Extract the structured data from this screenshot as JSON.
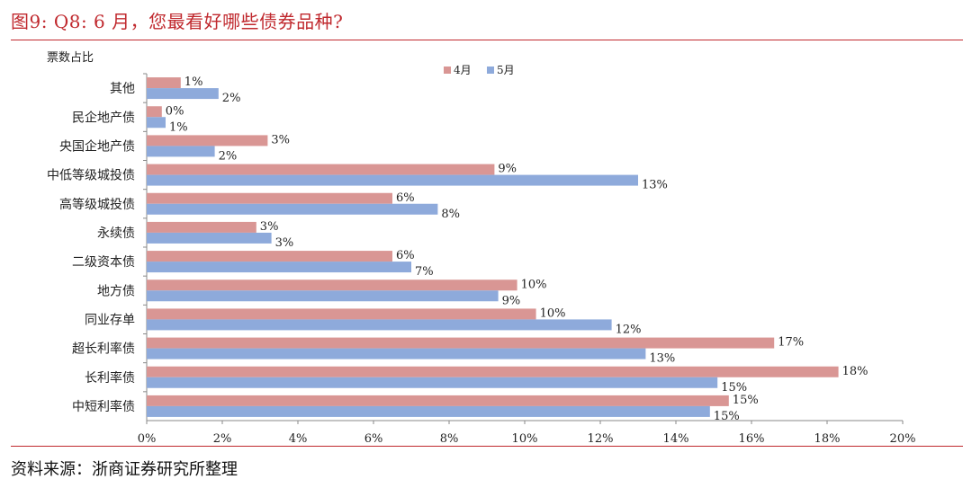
{
  "header": {
    "title": "图9:   Q8:    6 月，您最看好哪些债券品种?"
  },
  "footer": {
    "source": "资料来源：浙商证券研究所整理"
  },
  "colors": {
    "series_april": "#d99694",
    "series_may": "#8eaadb",
    "rule": "#c0292e"
  },
  "chart_data": {
    "type": "bar",
    "orientation": "horizontal",
    "title": "",
    "ylabel": "票数占比",
    "xlabel": "",
    "xlim": [
      0,
      20
    ],
    "x_ticks": [
      "0%",
      "2%",
      "4%",
      "6%",
      "8%",
      "10%",
      "12%",
      "14%",
      "16%",
      "18%",
      "20%"
    ],
    "categories": [
      "其他",
      "民企地产债",
      "央国企地产债",
      "中低等级城投债",
      "高等级城投债",
      "永续债",
      "二级资本债",
      "地方债",
      "同业存单",
      "超长利率债",
      "长利率债",
      "中短利率债"
    ],
    "series": [
      {
        "name": "4月",
        "values": [
          0.9,
          0.4,
          3.2,
          9.2,
          6.5,
          2.9,
          6.5,
          9.8,
          10.3,
          16.6,
          18.3,
          15.4
        ],
        "labels": [
          "1%",
          "0%",
          "3%",
          "9%",
          "6%",
          "3%",
          "6%",
          "10%",
          "10%",
          "17%",
          "18%",
          "15%"
        ]
      },
      {
        "name": "5月",
        "values": [
          1.9,
          0.5,
          1.8,
          13.0,
          7.7,
          3.3,
          7.0,
          9.3,
          12.3,
          13.2,
          15.1,
          14.9
        ],
        "labels": [
          "2%",
          "1%",
          "2%",
          "13%",
          "8%",
          "3%",
          "7%",
          "9%",
          "12%",
          "13%",
          "15%",
          "15%"
        ]
      }
    ],
    "legend": [
      "4月",
      "5月"
    ],
    "legend_position": "top-center",
    "grid": false
  }
}
